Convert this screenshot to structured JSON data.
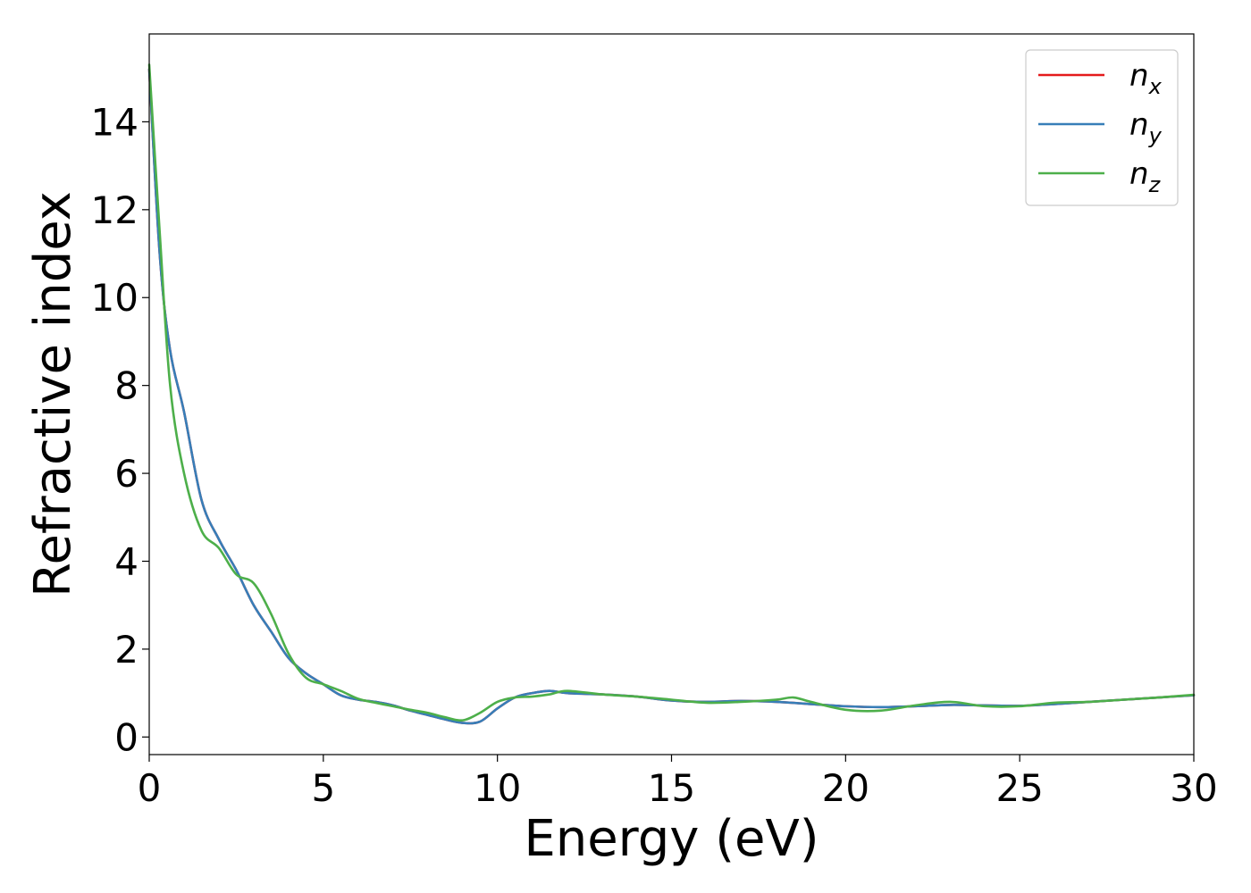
{
  "chart_data": {
    "type": "line",
    "title": "",
    "xlabel": "Energy (eV)",
    "ylabel": "Refractive index",
    "xlim": [
      0,
      30
    ],
    "ylim": [
      -0.4,
      16
    ],
    "xticks": [
      0,
      5,
      10,
      15,
      20,
      25,
      30
    ],
    "yticks": [
      0,
      2,
      4,
      6,
      8,
      10,
      12,
      14
    ],
    "grid": false,
    "legend_position": "top-right",
    "series": [
      {
        "name": "n",
        "subscript": "x",
        "color": "#e41a1c",
        "x": [
          0,
          0.3,
          0.6,
          1.0,
          1.5,
          2.0,
          2.5,
          3.0,
          3.5,
          4.0,
          4.5,
          5.0,
          5.5,
          6.0,
          6.5,
          7.0,
          7.5,
          8.0,
          8.5,
          9.0,
          9.5,
          10.0,
          10.5,
          11.0,
          11.5,
          12.0,
          13.0,
          14.0,
          15.0,
          16.0,
          17.0,
          18.0,
          19.0,
          20.0,
          21.0,
          22.0,
          23.0,
          24.0,
          25.0,
          26.0,
          27.0,
          28.0,
          29.0,
          30.0
        ],
        "y": [
          15.2,
          11.0,
          8.8,
          7.4,
          5.4,
          4.5,
          3.8,
          3.0,
          2.4,
          1.8,
          1.45,
          1.2,
          0.95,
          0.85,
          0.8,
          0.72,
          0.6,
          0.5,
          0.4,
          0.32,
          0.35,
          0.65,
          0.9,
          1.0,
          1.05,
          1.0,
          0.97,
          0.92,
          0.83,
          0.8,
          0.82,
          0.8,
          0.75,
          0.7,
          0.68,
          0.7,
          0.73,
          0.72,
          0.71,
          0.75,
          0.8,
          0.85,
          0.9,
          0.95
        ]
      },
      {
        "name": "n",
        "subscript": "y",
        "color": "#377eb8",
        "x": [
          0,
          0.3,
          0.6,
          1.0,
          1.5,
          2.0,
          2.5,
          3.0,
          3.5,
          4.0,
          4.5,
          5.0,
          5.5,
          6.0,
          6.5,
          7.0,
          7.5,
          8.0,
          8.5,
          9.0,
          9.5,
          10.0,
          10.5,
          11.0,
          11.5,
          12.0,
          13.0,
          14.0,
          15.0,
          16.0,
          17.0,
          18.0,
          19.0,
          20.0,
          21.0,
          22.0,
          23.0,
          24.0,
          25.0,
          26.0,
          27.0,
          28.0,
          29.0,
          30.0
        ],
        "y": [
          15.2,
          11.0,
          8.8,
          7.4,
          5.4,
          4.5,
          3.8,
          3.0,
          2.4,
          1.8,
          1.45,
          1.2,
          0.95,
          0.85,
          0.8,
          0.72,
          0.6,
          0.5,
          0.4,
          0.32,
          0.35,
          0.65,
          0.9,
          1.0,
          1.05,
          1.0,
          0.97,
          0.92,
          0.83,
          0.8,
          0.82,
          0.8,
          0.75,
          0.7,
          0.68,
          0.7,
          0.73,
          0.72,
          0.71,
          0.75,
          0.8,
          0.85,
          0.9,
          0.95
        ]
      },
      {
        "name": "n",
        "subscript": "z",
        "color": "#4daf4a",
        "x": [
          0,
          0.3,
          0.6,
          1.0,
          1.5,
          2.0,
          2.5,
          3.0,
          3.5,
          4.0,
          4.5,
          5.0,
          5.5,
          6.0,
          6.5,
          7.0,
          7.5,
          8.0,
          8.5,
          9.0,
          9.5,
          10.0,
          10.5,
          11.0,
          11.5,
          12.0,
          13.0,
          14.0,
          15.0,
          16.0,
          17.0,
          18.0,
          18.5,
          19.0,
          20.0,
          21.0,
          22.0,
          23.0,
          24.0,
          25.0,
          26.0,
          27.0,
          28.0,
          29.0,
          30.0
        ],
        "y": [
          15.3,
          11.5,
          8.0,
          6.0,
          4.7,
          4.3,
          3.7,
          3.5,
          2.8,
          1.9,
          1.35,
          1.2,
          1.05,
          0.87,
          0.78,
          0.7,
          0.62,
          0.55,
          0.45,
          0.38,
          0.55,
          0.8,
          0.9,
          0.92,
          0.97,
          1.05,
          0.97,
          0.92,
          0.85,
          0.78,
          0.8,
          0.85,
          0.9,
          0.8,
          0.62,
          0.6,
          0.72,
          0.8,
          0.7,
          0.7,
          0.78,
          0.8,
          0.85,
          0.9,
          0.96
        ]
      }
    ]
  }
}
